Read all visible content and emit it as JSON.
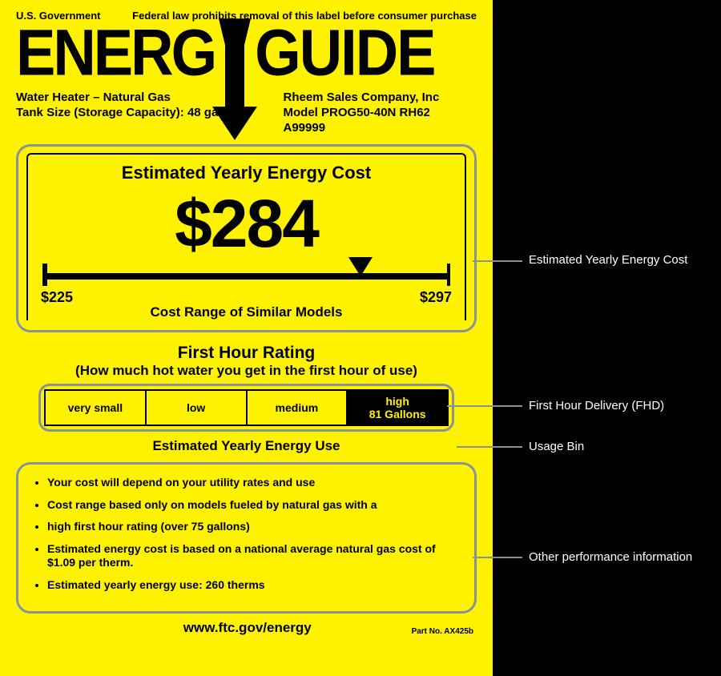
{
  "header": {
    "gov": "U.S. Government",
    "law": "Federal law prohibits removal of this label before consumer purchase",
    "logo_left": "ENERG",
    "logo_right": "GUIDE"
  },
  "meta": {
    "product": "Water Heater – Natural Gas",
    "tank": "Tank Size (Storage Capacity): 48 gallons",
    "company": "Rheem Sales Company, Inc",
    "model": "Model PROG50-40N RH62",
    "serial": "A99999"
  },
  "cost": {
    "title": "Estimated Yearly Energy Cost",
    "value": "$284",
    "min": "$225",
    "max": "$297",
    "range_label": "Cost Range of Similar Models",
    "marker_percent": 78
  },
  "fhr": {
    "title": "First Hour Rating",
    "subtitle": "(How much hot water you get in the first hour of use)",
    "bins": [
      "very small",
      "low",
      "medium",
      "high"
    ],
    "active_index": 3,
    "active_sub": "81 Gallons",
    "use_title": "Estimated Yearly Energy Use"
  },
  "info": {
    "items": [
      "Your cost will depend on your utility rates and use",
      "Cost range based only on models fueled by natural gas with a",
      "high first hour rating (over 75 gallons)",
      "Estimated energy cost is based on a national average natural gas cost of $1.09 per therm.",
      "Estimated yearly energy use: 260  therms"
    ]
  },
  "footer": {
    "url": "www.ftc.gov/energy",
    "part": "Part No. AX425b"
  },
  "annotations": {
    "cost": "Estimated Yearly Energy Cost",
    "fhd": "First Hour Delivery (FHD)",
    "bin": "Usage Bin",
    "other": "Other performance information"
  },
  "colors": {
    "label_bg": "#fff200",
    "page_bg": "#000000",
    "annotation_border": "#8a9299",
    "text": "#000000",
    "callout_text": "#ffffff"
  }
}
